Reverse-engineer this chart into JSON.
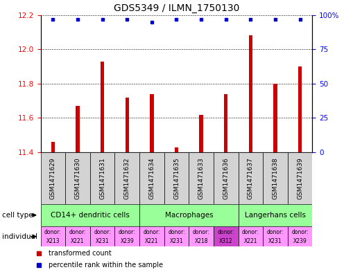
{
  "title": "GDS5349 / ILMN_1750130",
  "samples": [
    "GSM1471629",
    "GSM1471630",
    "GSM1471631",
    "GSM1471632",
    "GSM1471634",
    "GSM1471635",
    "GSM1471633",
    "GSM1471636",
    "GSM1471637",
    "GSM1471638",
    "GSM1471639"
  ],
  "red_values": [
    11.46,
    11.67,
    11.93,
    11.72,
    11.74,
    11.43,
    11.62,
    11.74,
    12.08,
    11.8,
    11.9
  ],
  "blue_values": [
    97,
    97,
    97,
    97,
    95,
    97,
    97,
    97,
    97,
    97,
    97
  ],
  "ylim_left": [
    11.4,
    12.2
  ],
  "ylim_right": [
    0,
    100
  ],
  "yticks_left": [
    11.4,
    11.6,
    11.8,
    12.0,
    12.2
  ],
  "yticks_right": [
    0,
    25,
    50,
    75,
    100
  ],
  "ytick_labels_right": [
    "0",
    "25",
    "50",
    "75",
    "100%"
  ],
  "cell_types": [
    {
      "label": "CD14+ dendritic cells",
      "start": 0,
      "end": 4,
      "color": "#99ff99"
    },
    {
      "label": "Macrophages",
      "start": 4,
      "end": 8,
      "color": "#99ff99"
    },
    {
      "label": "Langerhans cells",
      "start": 8,
      "end": 11,
      "color": "#99ff99"
    }
  ],
  "individuals": [
    {
      "donor": "X213",
      "col": 0,
      "color": "#ff99ff"
    },
    {
      "donor": "X221",
      "col": 1,
      "color": "#ff99ff"
    },
    {
      "donor": "X231",
      "col": 2,
      "color": "#ff99ff"
    },
    {
      "donor": "X239",
      "col": 3,
      "color": "#ff99ff"
    },
    {
      "donor": "X221",
      "col": 4,
      "color": "#ff99ff"
    },
    {
      "donor": "X231",
      "col": 5,
      "color": "#ff99ff"
    },
    {
      "donor": "X218",
      "col": 6,
      "color": "#ff99ff"
    },
    {
      "donor": "X312",
      "col": 7,
      "color": "#cc44cc"
    },
    {
      "donor": "X221",
      "col": 8,
      "color": "#ff99ff"
    },
    {
      "donor": "X231",
      "col": 9,
      "color": "#ff99ff"
    },
    {
      "donor": "X239",
      "col": 10,
      "color": "#ff99ff"
    }
  ],
  "bar_color": "#cc0000",
  "dot_color": "#0000cc",
  "title_fontsize": 10,
  "tick_fontsize": 7.5,
  "sample_fontsize": 6.5,
  "celltype_fontsize": 7.5,
  "indiv_fontsize": 5.5,
  "legend_fontsize": 7,
  "rowlabel_fontsize": 7.5
}
